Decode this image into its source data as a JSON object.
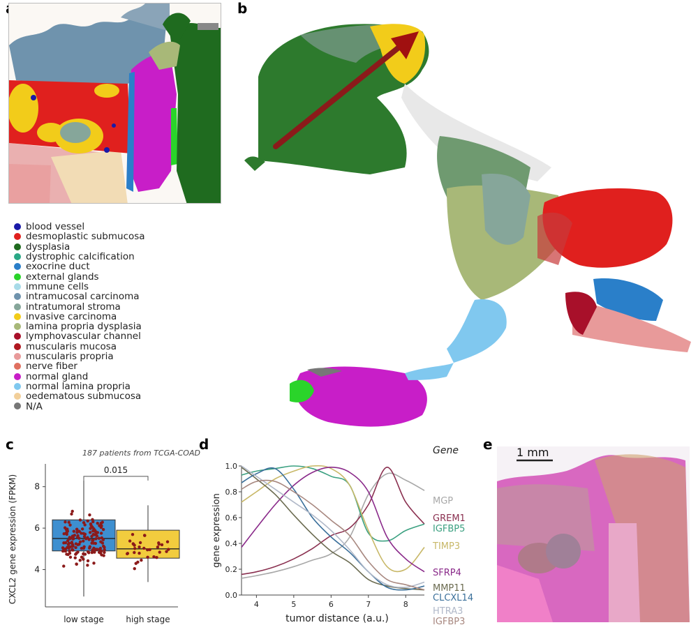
{
  "panels": {
    "a": "a",
    "b": "b",
    "c": "c",
    "d": "d",
    "e": "e"
  },
  "legend": [
    {
      "label": "blood vessel",
      "color": "#1a1aa8"
    },
    {
      "label": "desmoplastic submucosa",
      "color": "#e0201e"
    },
    {
      "label": "dysplasia",
      "color": "#1f6b1f"
    },
    {
      "label": "dystrophic calcification",
      "color": "#2aa886"
    },
    {
      "label": "exocrine duct",
      "color": "#2a7fc9"
    },
    {
      "label": "external glands",
      "color": "#2ad42a"
    },
    {
      "label": "immune cells",
      "color": "#a8dbe8"
    },
    {
      "label": "intramucosal carcinoma",
      "color": "#6f93ad"
    },
    {
      "label": "intratumoral stroma",
      "color": "#86a69a"
    },
    {
      "label": "invasive carcinoma",
      "color": "#f2cc1a"
    },
    {
      "label": "lamina propria dysplasia",
      "color": "#a8b878"
    },
    {
      "label": "lymphovascular channel",
      "color": "#a8102a"
    },
    {
      "label": "muscularis mucosa",
      "color": "#b01820"
    },
    {
      "label": "muscularis propria",
      "color": "#e89a9a"
    },
    {
      "label": "nerve fiber",
      "color": "#e07060"
    },
    {
      "label": "normal gland",
      "color": "#c81ec8"
    },
    {
      "label": "normal lamina propria",
      "color": "#80c8ef"
    },
    {
      "label": "oedematous submucosa",
      "color": "#f2cf9a"
    },
    {
      "label": "N/A",
      "color": "#777777"
    }
  ],
  "panel_c": {
    "title": "187 patients from TCGA-COAD",
    "ylabel": "CXCL2 gene expression (FPKM)",
    "pvalue": "0.015",
    "yticks": [
      "4",
      "6",
      "8"
    ]
  },
  "panel_d": {
    "legend_title": "Gene",
    "ylabel": "gene expression",
    "xlabel": "tumor distance (a.u.)",
    "xticks": [
      "4",
      "5",
      "6",
      "7",
      "8"
    ],
    "yticks": [
      "0.0",
      "0.2",
      "0.4",
      "0.6",
      "0.8",
      "1.0"
    ]
  },
  "panel_e": {
    "scalebar": "1 mm"
  },
  "chart_data": [
    {
      "type": "box",
      "title": "187 patients from TCGA-COAD",
      "xlabel": "",
      "ylabel": "CXCL2 gene expression (FPKM)",
      "ylim": [
        2.2,
        9.1
      ],
      "categories": [
        "low stage",
        "high stage"
      ],
      "colors": [
        "#3e8fd0",
        "#f2cc3e"
      ],
      "boxes": [
        {
          "name": "low stage",
          "q1": 4.9,
          "median": 5.5,
          "q3": 6.4,
          "whisker_low": 2.7,
          "whisker_high": 8.3
        },
        {
          "name": "high stage",
          "q1": 4.55,
          "median": 5.0,
          "q3": 5.9,
          "whisker_low": 3.4,
          "whisker_high": 7.1
        }
      ],
      "annotation": "0.015"
    },
    {
      "type": "line",
      "xlabel": "tumor distance (a.u.)",
      "ylabel": "gene expression",
      "xlim": [
        3.6,
        8.5
      ],
      "ylim": [
        0,
        1.0
      ],
      "x": [
        3.6,
        4.0,
        4.5,
        5.0,
        5.5,
        6.0,
        6.5,
        7.0,
        7.5,
        8.0,
        8.5
      ],
      "series": [
        {
          "name": "MGP",
          "color": "#a8a8a8",
          "values": [
            0.13,
            0.15,
            0.18,
            0.22,
            0.27,
            0.32,
            0.45,
            0.78,
            0.94,
            0.89,
            0.81
          ]
        },
        {
          "name": "GREM1",
          "color": "#8a3050",
          "values": [
            0.16,
            0.18,
            0.22,
            0.28,
            0.36,
            0.46,
            0.52,
            0.7,
            0.99,
            0.72,
            0.55
          ]
        },
        {
          "name": "IGFBP5",
          "color": "#3aa080",
          "values": [
            0.93,
            0.96,
            0.98,
            1.0,
            0.98,
            0.92,
            0.85,
            0.48,
            0.42,
            0.5,
            0.55
          ]
        },
        {
          "name": "TIMP3",
          "color": "#c8b868",
          "values": [
            0.72,
            0.8,
            0.9,
            0.96,
            1.0,
            0.98,
            0.85,
            0.5,
            0.22,
            0.2,
            0.37
          ]
        },
        {
          "name": "SFRP4",
          "color": "#8a2a8a",
          "values": [
            0.37,
            0.52,
            0.7,
            0.85,
            0.95,
            0.99,
            0.95,
            0.8,
            0.45,
            0.28,
            0.18
          ]
        },
        {
          "name": "MMP11",
          "color": "#6b6b50",
          "values": [
            0.99,
            0.9,
            0.78,
            0.62,
            0.47,
            0.34,
            0.25,
            0.12,
            0.07,
            0.05,
            0.04
          ]
        },
        {
          "name": "CLCXL14",
          "color": "#3a6f9a",
          "values": [
            0.87,
            0.94,
            0.98,
            0.82,
            0.6,
            0.45,
            0.33,
            0.18,
            0.06,
            0.04,
            0.07
          ]
        },
        {
          "name": "HTRA3",
          "color": "#b0b8c8",
          "values": [
            1.0,
            0.92,
            0.82,
            0.72,
            0.62,
            0.5,
            0.35,
            0.18,
            0.08,
            0.06,
            0.1
          ]
        },
        {
          "name": "IGFBP3",
          "color": "#a88880",
          "values": [
            0.82,
            0.88,
            0.88,
            0.8,
            0.7,
            0.58,
            0.46,
            0.26,
            0.12,
            0.08,
            0.04
          ]
        }
      ]
    }
  ]
}
